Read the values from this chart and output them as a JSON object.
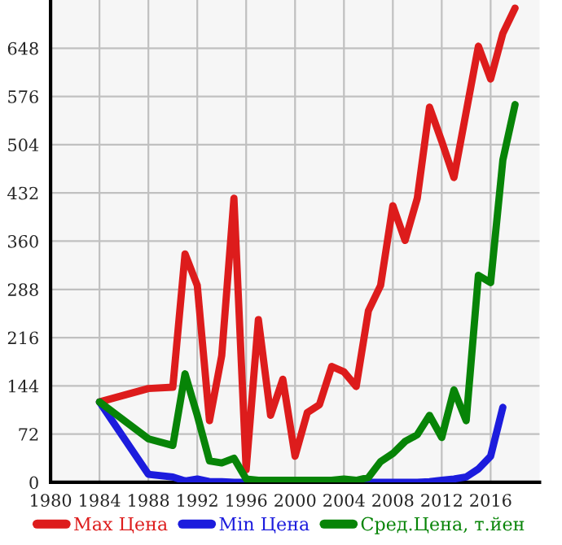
{
  "chart_data": {
    "type": "line",
    "x": [
      1984,
      1988,
      1990,
      1991,
      1992,
      1993,
      1994,
      1995,
      1996,
      1997,
      1998,
      1999,
      2000,
      2001,
      2002,
      2003,
      2004,
      2005,
      2006,
      2007,
      2008,
      2009,
      2010,
      2011,
      2012,
      2013,
      2014,
      2015,
      2016,
      2017,
      2018
    ],
    "series": [
      {
        "name": "Max Цена",
        "color": "#dd1c1c",
        "values": [
          120,
          140,
          142,
          341,
          294,
          92,
          189,
          424,
          19,
          243,
          100,
          154,
          39,
          104,
          116,
          173,
          165,
          143,
          256,
          294,
          413,
          361,
          424,
          560,
          509,
          455,
          null,
          651,
          602,
          670,
          708
        ]
      },
      {
        "name": "Min Цена",
        "color": "#1c1cdd",
        "values": [
          120,
          12,
          8,
          2,
          5,
          1,
          1,
          0,
          0,
          0,
          0,
          0,
          0,
          0,
          0,
          0,
          0,
          0,
          0,
          0,
          0,
          0,
          0,
          1,
          3,
          5,
          8,
          20,
          39,
          112,
          null
        ]
      },
      {
        "name": "Сред.Цена, т.йен",
        "color": "#078407",
        "values": [
          120,
          65,
          55,
          162,
          100,
          32,
          29,
          36,
          5,
          3,
          3,
          3,
          3,
          3,
          3,
          3,
          5,
          3,
          7,
          31,
          43,
          61,
          71,
          100,
          67,
          138,
          92,
          309,
          298,
          481,
          564
        ]
      }
    ],
    "xlim": [
      1980,
      2020
    ],
    "ylim": [
      0,
      720
    ],
    "xticks": [
      1980,
      1984,
      1988,
      1992,
      1996,
      2000,
      2004,
      2008,
      2012,
      2016
    ],
    "yticks": [
      0,
      72,
      144,
      216,
      288,
      360,
      432,
      504,
      576,
      648
    ],
    "grid": true,
    "legend": "bottom",
    "marker": "none",
    "line_style": "solid"
  }
}
